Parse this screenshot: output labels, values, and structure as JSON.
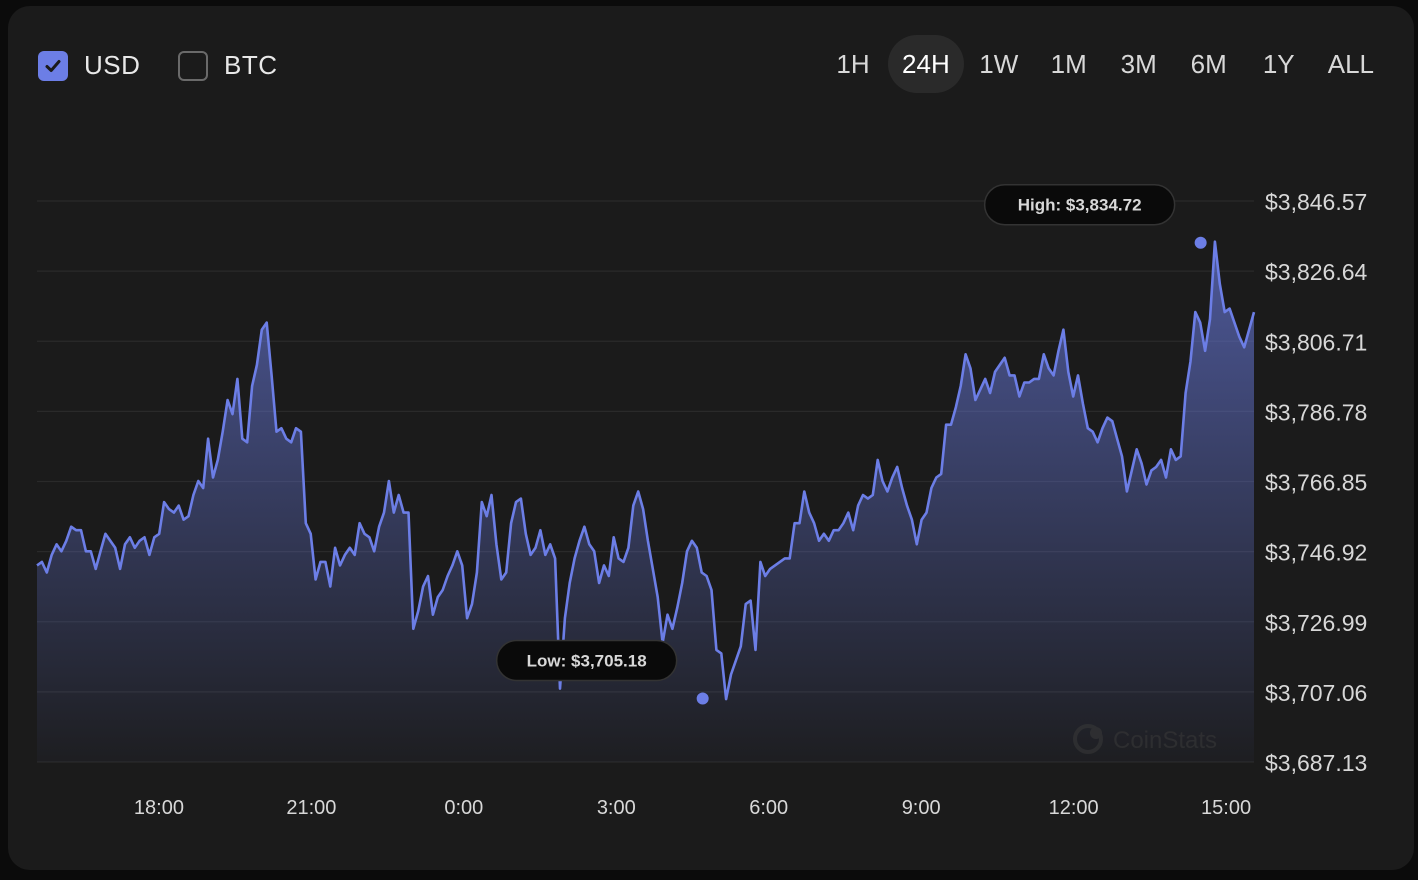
{
  "currency_toggles": [
    {
      "label": "USD",
      "checked": true
    },
    {
      "label": "BTC",
      "checked": false
    }
  ],
  "ranges": [
    {
      "label": "1H",
      "active": false
    },
    {
      "label": "24H",
      "active": true
    },
    {
      "label": "1W",
      "active": false
    },
    {
      "label": "1M",
      "active": false
    },
    {
      "label": "3M",
      "active": false
    },
    {
      "label": "6M",
      "active": false
    },
    {
      "label": "1Y",
      "active": false
    },
    {
      "label": "ALL",
      "active": false
    }
  ],
  "watermark": "CoinStats",
  "colors": {
    "line": "#6c7ee6",
    "background": "#1b1b1b",
    "grid": "#2a2a2a",
    "text": "#d8d8d8"
  },
  "chart_data": {
    "type": "area",
    "title": "",
    "xlabel": "",
    "ylabel": "",
    "ylim": [
      3687.13,
      3846.57
    ],
    "xlim": [
      16.2,
      15.4
    ],
    "y_ticks": [
      "$3,846.57",
      "$3,826.64",
      "$3,806.71",
      "$3,786.78",
      "$3,766.85",
      "$3,746.92",
      "$3,726.99",
      "$3,707.06",
      "$3,687.13"
    ],
    "y_tick_values": [
      3846.57,
      3826.64,
      3806.71,
      3786.78,
      3766.85,
      3746.92,
      3726.99,
      3707.06,
      3687.13
    ],
    "x_ticks": [
      "18:00",
      "21:00",
      "0:00",
      "3:00",
      "6:00",
      "9:00",
      "12:00",
      "15:00"
    ],
    "x_tick_hours": [
      18,
      21,
      24,
      27,
      30,
      33,
      36,
      39
    ],
    "x_start_hour": 15.6,
    "x_end_hour": 39.55,
    "high": {
      "label": "High: $3,834.72",
      "value": 3834.72,
      "hour": 38.5
    },
    "low": {
      "label": "Low: $3,705.18",
      "value": 3705.18,
      "hour": 28.7
    },
    "series": [
      {
        "name": "USD",
        "values": [
          3743,
          3744,
          3741,
          3746,
          3749,
          3747,
          3750,
          3754,
          3753,
          3753,
          3747,
          3747,
          3742,
          3747,
          3752,
          3750,
          3748,
          3742,
          3749,
          3751,
          3748,
          3750,
          3751,
          3746,
          3751,
          3752,
          3761,
          3759,
          3758,
          3760,
          3756,
          3757,
          3763,
          3767,
          3765,
          3779,
          3768,
          3773,
          3781,
          3790,
          3786,
          3796,
          3779,
          3778,
          3794,
          3800,
          3810,
          3812,
          3797,
          3781,
          3782,
          3779,
          3778,
          3782,
          3781,
          3755,
          3752,
          3739,
          3744,
          3744,
          3737,
          3748,
          3743,
          3746,
          3748,
          3746,
          3755,
          3752,
          3751,
          3747,
          3754,
          3758,
          3767,
          3758,
          3763,
          3758,
          3758,
          3725,
          3730,
          3737,
          3740,
          3729,
          3734,
          3736,
          3740,
          3743,
          3747,
          3743,
          3728,
          3732,
          3741,
          3761,
          3757,
          3763,
          3749,
          3739,
          3741,
          3755,
          3761,
          3762,
          3752,
          3746,
          3748,
          3753,
          3746,
          3749,
          3745,
          3708,
          3728,
          3738,
          3745,
          3750,
          3754,
          3749,
          3747,
          3738,
          3743,
          3740,
          3751,
          3745,
          3744,
          3748,
          3760,
          3764,
          3759,
          3750,
          3742,
          3734,
          3721,
          3729,
          3725,
          3731,
          3738,
          3747,
          3750,
          3748,
          3741,
          3740,
          3736,
          3719,
          3718,
          3705,
          3712,
          3716,
          3720,
          3732,
          3733,
          3719,
          3744,
          3740,
          3742,
          3743,
          3744,
          3745,
          3745,
          3755,
          3755,
          3764,
          3758,
          3755,
          3750,
          3752,
          3750,
          3753,
          3753,
          3755,
          3758,
          3753,
          3760,
          3763,
          3762,
          3763,
          3773,
          3767,
          3764,
          3768,
          3771,
          3765,
          3760,
          3756,
          3749,
          3756,
          3758,
          3765,
          3768,
          3769,
          3783,
          3783,
          3788,
          3794,
          3803,
          3799,
          3790,
          3793,
          3796,
          3792,
          3798,
          3800,
          3802,
          3797,
          3797,
          3791,
          3795,
          3795,
          3796,
          3796,
          3803,
          3799,
          3797,
          3804,
          3810,
          3798,
          3791,
          3797,
          3789,
          3782,
          3781,
          3778,
          3782,
          3785,
          3784,
          3779,
          3774,
          3764,
          3770,
          3776,
          3772,
          3766,
          3770,
          3771,
          3773,
          3768,
          3776,
          3773,
          3774,
          3792,
          3801,
          3815,
          3812,
          3804,
          3813,
          3835,
          3823,
          3815,
          3816,
          3812,
          3808,
          3805,
          3810,
          3815
        ]
      }
    ]
  }
}
